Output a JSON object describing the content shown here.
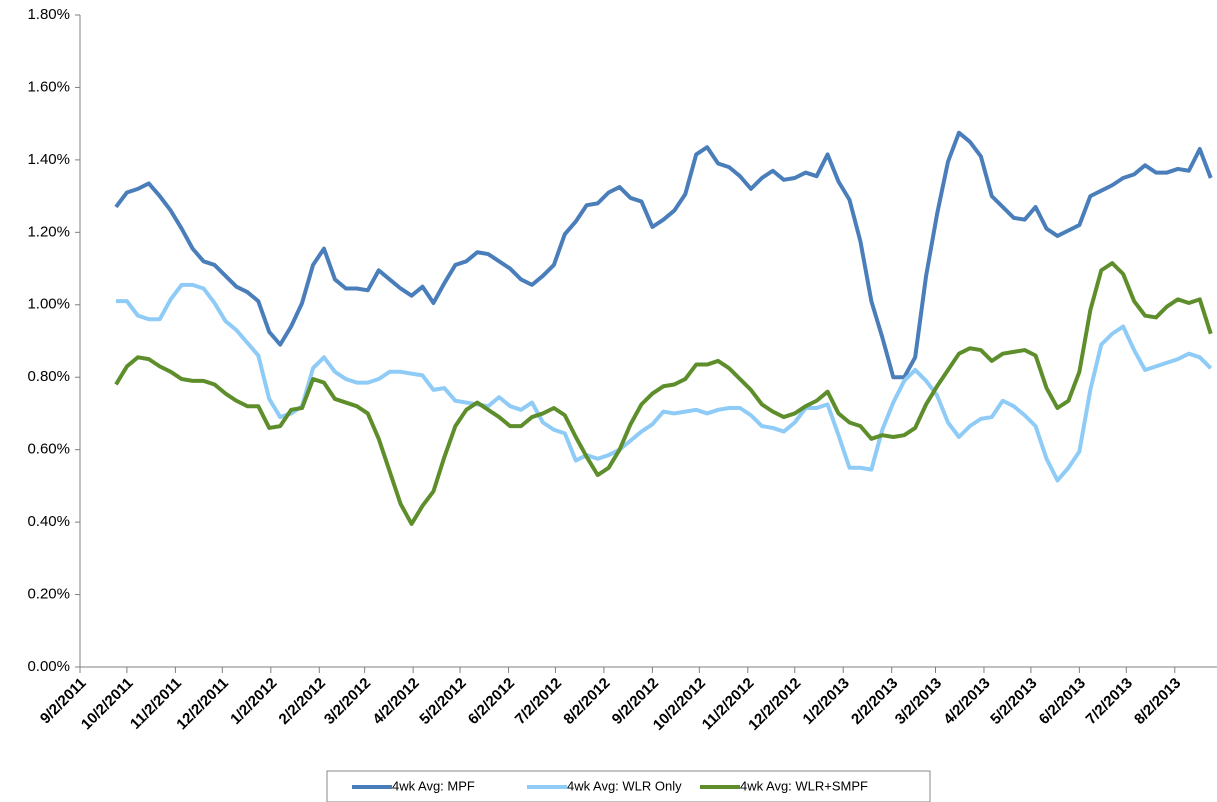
{
  "chart_data": {
    "type": "line",
    "x": [
      "2011-09-25",
      "2011-10-02",
      "2011-10-09",
      "2011-10-16",
      "2011-10-23",
      "2011-10-30",
      "2011-11-06",
      "2011-11-13",
      "2011-11-20",
      "2011-11-27",
      "2011-12-04",
      "2011-12-11",
      "2011-12-18",
      "2011-12-25",
      "2012-01-01",
      "2012-01-08",
      "2012-01-15",
      "2012-01-22",
      "2012-01-29",
      "2012-02-05",
      "2012-02-12",
      "2012-02-19",
      "2012-02-26",
      "2012-03-04",
      "2012-03-11",
      "2012-03-18",
      "2012-03-25",
      "2012-04-01",
      "2012-04-08",
      "2012-04-15",
      "2012-04-22",
      "2012-04-29",
      "2012-05-06",
      "2012-05-13",
      "2012-05-20",
      "2012-05-27",
      "2012-06-03",
      "2012-06-10",
      "2012-06-17",
      "2012-06-24",
      "2012-07-01",
      "2012-07-08",
      "2012-07-15",
      "2012-07-22",
      "2012-07-29",
      "2012-08-05",
      "2012-08-12",
      "2012-08-19",
      "2012-08-26",
      "2012-09-02",
      "2012-09-09",
      "2012-09-16",
      "2012-09-23",
      "2012-09-30",
      "2012-10-07",
      "2012-10-14",
      "2012-10-21",
      "2012-10-28",
      "2012-11-04",
      "2012-11-11",
      "2012-11-18",
      "2012-11-25",
      "2012-12-02",
      "2012-12-09",
      "2012-12-16",
      "2012-12-23",
      "2012-12-30",
      "2013-01-06",
      "2013-01-13",
      "2013-01-20",
      "2013-01-27",
      "2013-02-03",
      "2013-02-10",
      "2013-02-17",
      "2013-02-24",
      "2013-03-03",
      "2013-03-10",
      "2013-03-17",
      "2013-03-24",
      "2013-03-31",
      "2013-04-07",
      "2013-04-14",
      "2013-04-21",
      "2013-04-28",
      "2013-05-05",
      "2013-05-12",
      "2013-05-19",
      "2013-05-26",
      "2013-06-02",
      "2013-06-09",
      "2013-06-16",
      "2013-06-23",
      "2013-06-30",
      "2013-07-07",
      "2013-07-14",
      "2013-07-21",
      "2013-07-28",
      "2013-08-04",
      "2013-08-11",
      "2013-08-18",
      "2013-08-25"
    ],
    "series": [
      {
        "name": "4wk Avg: MPF",
        "color": "#4a7ebb",
        "values": [
          1.27,
          1.31,
          1.32,
          1.335,
          1.3,
          1.26,
          1.21,
          1.155,
          1.12,
          1.11,
          1.08,
          1.05,
          1.035,
          1.01,
          0.925,
          0.89,
          0.94,
          1.005,
          1.11,
          1.155,
          1.07,
          1.045,
          1.045,
          1.04,
          1.095,
          1.07,
          1.045,
          1.025,
          1.05,
          1.005,
          1.06,
          1.11,
          1.12,
          1.145,
          1.14,
          1.12,
          1.1,
          1.07,
          1.055,
          1.08,
          1.11,
          1.195,
          1.23,
          1.275,
          1.28,
          1.31,
          1.325,
          1.295,
          1.285,
          1.215,
          1.235,
          1.26,
          1.305,
          1.415,
          1.435,
          1.39,
          1.38,
          1.355,
          1.32,
          1.35,
          1.37,
          1.345,
          1.35,
          1.365,
          1.355,
          1.415,
          1.34,
          1.29,
          1.175,
          1.01,
          0.91,
          0.8,
          0.8,
          0.855,
          1.08,
          1.25,
          1.395,
          1.475,
          1.45,
          1.41,
          1.3,
          1.27,
          1.24,
          1.235,
          1.27,
          1.21,
          1.19,
          1.205,
          1.22,
          1.3,
          1.315,
          1.33,
          1.35,
          1.36,
          1.385,
          1.365,
          1.365,
          1.375,
          1.37,
          1.43,
          1.35
        ]
      },
      {
        "name": "4wk Avg: WLR Only",
        "color": "#8fcbf7",
        "values": [
          1.01,
          1.01,
          0.97,
          0.96,
          0.96,
          1.015,
          1.055,
          1.055,
          1.045,
          1.005,
          0.955,
          0.93,
          0.895,
          0.86,
          0.74,
          0.69,
          0.7,
          0.72,
          0.825,
          0.855,
          0.815,
          0.795,
          0.785,
          0.785,
          0.795,
          0.815,
          0.815,
          0.81,
          0.805,
          0.765,
          0.77,
          0.735,
          0.73,
          0.725,
          0.72,
          0.745,
          0.72,
          0.71,
          0.73,
          0.675,
          0.655,
          0.645,
          0.57,
          0.585,
          0.575,
          0.585,
          0.6,
          0.625,
          0.65,
          0.67,
          0.705,
          0.7,
          0.705,
          0.71,
          0.7,
          0.71,
          0.715,
          0.715,
          0.695,
          0.665,
          0.66,
          0.65,
          0.675,
          0.715,
          0.715,
          0.725,
          0.64,
          0.55,
          0.55,
          0.545,
          0.655,
          0.73,
          0.79,
          0.82,
          0.79,
          0.75,
          0.675,
          0.635,
          0.665,
          0.685,
          0.69,
          0.735,
          0.72,
          0.695,
          0.665,
          0.575,
          0.515,
          0.55,
          0.595,
          0.765,
          0.89,
          0.92,
          0.94,
          0.875,
          0.82,
          0.83,
          0.84,
          0.85,
          0.865,
          0.855,
          0.825
        ]
      },
      {
        "name": "4wk Avg: WLR+SMPF",
        "color": "#5e8e2b",
        "values": [
          0.78,
          0.83,
          0.855,
          0.85,
          0.83,
          0.815,
          0.795,
          0.79,
          0.79,
          0.78,
          0.755,
          0.735,
          0.72,
          0.72,
          0.66,
          0.665,
          0.71,
          0.715,
          0.795,
          0.785,
          0.74,
          0.73,
          0.72,
          0.7,
          0.63,
          0.54,
          0.45,
          0.395,
          0.445,
          0.485,
          0.58,
          0.665,
          0.71,
          0.73,
          0.71,
          0.69,
          0.665,
          0.665,
          0.69,
          0.7,
          0.715,
          0.695,
          0.635,
          0.58,
          0.53,
          0.55,
          0.6,
          0.67,
          0.725,
          0.755,
          0.775,
          0.78,
          0.795,
          0.835,
          0.835,
          0.845,
          0.825,
          0.795,
          0.765,
          0.725,
          0.705,
          0.69,
          0.7,
          0.72,
          0.735,
          0.76,
          0.7,
          0.675,
          0.665,
          0.63,
          0.64,
          0.635,
          0.64,
          0.66,
          0.725,
          0.775,
          0.82,
          0.865,
          0.88,
          0.875,
          0.845,
          0.865,
          0.87,
          0.875,
          0.86,
          0.77,
          0.715,
          0.735,
          0.815,
          0.985,
          1.095,
          1.115,
          1.085,
          1.01,
          0.97,
          0.965,
          0.995,
          1.015,
          1.005,
          1.015,
          0.92
        ]
      }
    ],
    "xlim": [
      "2011-09-02",
      "2013-08-29"
    ],
    "xticks": [
      {
        "value": "2011-09-02",
        "label": "9/2/2011"
      },
      {
        "value": "2011-10-02",
        "label": "10/2/2011"
      },
      {
        "value": "2011-11-02",
        "label": "11/2/2011"
      },
      {
        "value": "2011-12-02",
        "label": "12/2/2011"
      },
      {
        "value": "2012-01-02",
        "label": "1/2/2012"
      },
      {
        "value": "2012-02-02",
        "label": "2/2/2012"
      },
      {
        "value": "2012-03-02",
        "label": "3/2/2012"
      },
      {
        "value": "2012-04-02",
        "label": "4/2/2012"
      },
      {
        "value": "2012-05-02",
        "label": "5/2/2012"
      },
      {
        "value": "2012-06-02",
        "label": "6/2/2012"
      },
      {
        "value": "2012-07-02",
        "label": "7/2/2012"
      },
      {
        "value": "2012-08-02",
        "label": "8/2/2012"
      },
      {
        "value": "2012-09-02",
        "label": "9/2/2012"
      },
      {
        "value": "2012-10-02",
        "label": "10/2/2012"
      },
      {
        "value": "2012-11-02",
        "label": "11/2/2012"
      },
      {
        "value": "2012-12-02",
        "label": "12/2/2012"
      },
      {
        "value": "2013-01-02",
        "label": "1/2/2013"
      },
      {
        "value": "2013-02-02",
        "label": "2/2/2013"
      },
      {
        "value": "2013-03-02",
        "label": "3/2/2013"
      },
      {
        "value": "2013-04-02",
        "label": "4/2/2013"
      },
      {
        "value": "2013-05-02",
        "label": "5/2/2013"
      },
      {
        "value": "2013-06-02",
        "label": "6/2/2013"
      },
      {
        "value": "2013-07-02",
        "label": "7/2/2013"
      },
      {
        "value": "2013-08-02",
        "label": "8/2/2013"
      }
    ],
    "ylim": [
      0,
      1.8
    ],
    "yticks": [
      {
        "value": 0,
        "label": "0.00%"
      },
      {
        "value": 0.2,
        "label": "0.20%"
      },
      {
        "value": 0.4,
        "label": "0.40%"
      },
      {
        "value": 0.6,
        "label": "0.60%"
      },
      {
        "value": 0.8,
        "label": "0.80%"
      },
      {
        "value": 1.0,
        "label": "1.00%"
      },
      {
        "value": 1.2,
        "label": "1.20%"
      },
      {
        "value": 1.4,
        "label": "1.40%"
      },
      {
        "value": 1.6,
        "label": "1.60%"
      },
      {
        "value": 1.8,
        "label": "1.80%"
      }
    ],
    "grid": false,
    "legend": "bottom"
  }
}
